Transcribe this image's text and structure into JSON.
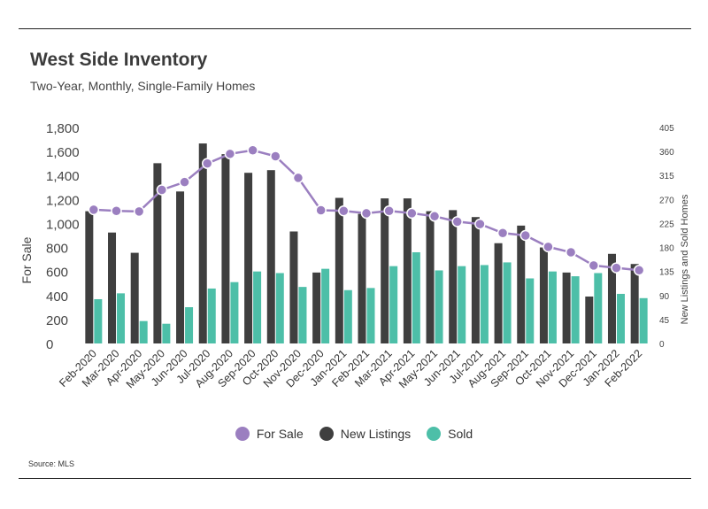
{
  "header": {
    "title": "West Side Inventory",
    "subtitle": "Two-Year, Monthly, Single-Family Homes"
  },
  "source": "Source:  MLS",
  "colors": {
    "for_sale": "#9b7fc0",
    "new_listings": "#3f3f3f",
    "sold": "#4dbfa8"
  },
  "chart_data": {
    "type": "bar",
    "categories": [
      "Feb-2020",
      "Mar-2020",
      "Apr-2020",
      "May-2020",
      "Jun-2020",
      "Jul-2020",
      "Aug-2020",
      "Sep-2020",
      "Oct-2020",
      "Nov-2020",
      "Dec-2020",
      "Jan-2021",
      "Feb-2021",
      "Mar-2021",
      "Apr-2021",
      "May-2021",
      "Jun-2021",
      "Jul-2021",
      "Aug-2021",
      "Sep-2021",
      "Oct-2021",
      "Nov-2021",
      "Dec-2021",
      "Jan-2022",
      "Feb-2022"
    ],
    "ylabel": "For Sale",
    "y2label": "New Listings and Sold Homes",
    "ylim": [
      0,
      1800
    ],
    "y2lim": [
      0,
      405
    ],
    "yticks": [
      "0",
      "200",
      "400",
      "600",
      "800",
      "1,000",
      "1,200",
      "1,400",
      "1,600",
      "1,800"
    ],
    "y2ticks": [
      "0",
      "45",
      "90",
      "135",
      "180",
      "225",
      "270",
      "315",
      "360",
      "405"
    ],
    "series": [
      {
        "name": "For Sale",
        "type": "line",
        "axis": "left",
        "values": [
          1115,
          1105,
          1100,
          1280,
          1345,
          1500,
          1580,
          1610,
          1560,
          1380,
          1110,
          1105,
          1085,
          1105,
          1085,
          1060,
          1015,
          995,
          920,
          900,
          805,
          760,
          650,
          630,
          610
        ]
      },
      {
        "name": "New Listings",
        "type": "bar",
        "axis": "right",
        "values": [
          248,
          208,
          170,
          338,
          285,
          375,
          355,
          320,
          325,
          210,
          133,
          273,
          243,
          272,
          272,
          248,
          250,
          237,
          188,
          221,
          180,
          133,
          88,
          168,
          149
        ]
      },
      {
        "name": "Sold",
        "type": "bar",
        "axis": "right",
        "values": [
          83,
          94,
          42,
          37,
          68,
          103,
          115,
          135,
          132,
          106,
          140,
          100,
          104,
          145,
          171,
          137,
          145,
          147,
          152,
          122,
          135,
          126,
          132,
          93,
          85
        ]
      }
    ],
    "grid": false,
    "legend": "bottom"
  }
}
